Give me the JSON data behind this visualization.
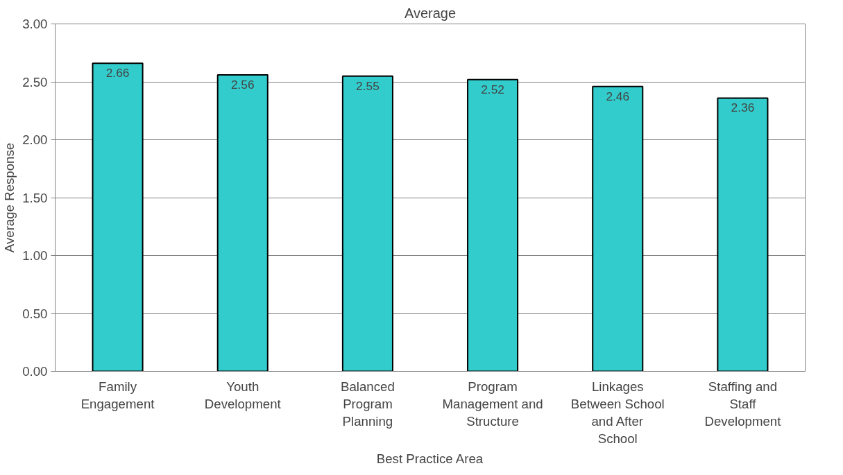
{
  "chart_data": {
    "type": "bar",
    "title": "Average",
    "xlabel": "Best Practice Area",
    "ylabel": "Average Response",
    "categories": [
      "Family Engagement",
      "Youth Development",
      "Balanced Program Planning",
      "Program Management and Structure",
      "Linkages Between School and After School",
      "Staffing and Staff Development"
    ],
    "values": [
      2.66,
      2.56,
      2.55,
      2.52,
      2.46,
      2.36
    ],
    "color": "#33cccc",
    "ylim": [
      0,
      3
    ],
    "yticks": [
      {
        "value": 0,
        "label": "0.00"
      },
      {
        "value": 0.5,
        "label": "0.50"
      },
      {
        "value": 1,
        "label": "1.00"
      },
      {
        "value": 1.5,
        "label": "1.50"
      },
      {
        "value": 2,
        "label": "2.00"
      },
      {
        "value": 2.5,
        "label": "2.50"
      },
      {
        "value": 3,
        "label": "3.00"
      }
    ],
    "grid": "y",
    "data_labels": true
  }
}
